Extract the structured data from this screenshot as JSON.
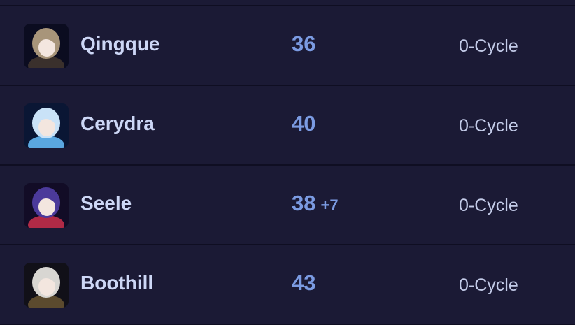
{
  "characters": [
    {
      "name": "Qingque",
      "level": "36",
      "bonus": "",
      "cycle": "0-Cycle",
      "avatar_colors": [
        "#0b0c20",
        "#a8957a",
        "#3a302c"
      ]
    },
    {
      "name": "Cerydra",
      "level": "40",
      "bonus": "",
      "cycle": "0-Cycle",
      "avatar_colors": [
        "#0a1634",
        "#c9e2f7",
        "#5aa7e0"
      ]
    },
    {
      "name": "Seele",
      "level": "38",
      "bonus": "+7",
      "cycle": "0-Cycle",
      "avatar_colors": [
        "#120c26",
        "#4b3a9a",
        "#b02a46"
      ]
    },
    {
      "name": "Boothill",
      "level": "43",
      "bonus": "",
      "cycle": "0-Cycle",
      "avatar_colors": [
        "#111018",
        "#d8d6d2",
        "#5b4a2e"
      ]
    }
  ]
}
